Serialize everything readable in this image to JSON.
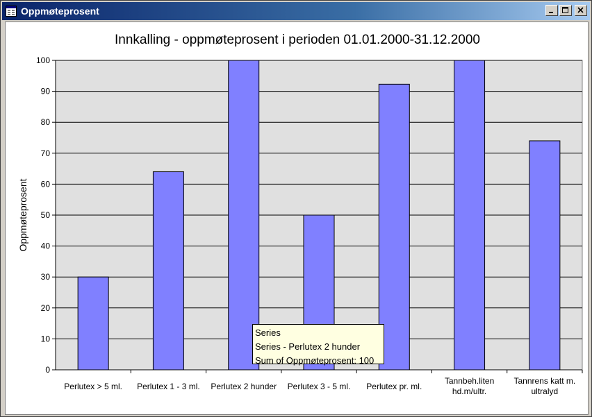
{
  "window": {
    "title": "Oppmøteprosent"
  },
  "colors": {
    "bar": "#8080ff",
    "plot_bg": "#e0e0e0",
    "tooltip_bg": "#ffffe1"
  },
  "chart_data": {
    "type": "bar",
    "title": "Innkalling - oppmøteprosent i perioden 01.01.2000-31.12.2000",
    "ylabel": "Oppmøteprosent",
    "xlabel": "",
    "ylim": [
      0,
      100
    ],
    "yticks": [
      0,
      10,
      20,
      30,
      40,
      50,
      60,
      70,
      80,
      90,
      100
    ],
    "categories": [
      [
        "Perlutex > 5 ml."
      ],
      [
        "Perlutex 1 - 3 ml."
      ],
      [
        "Perlutex 2 hunder"
      ],
      [
        "Perlutex 3 - 5 ml."
      ],
      [
        "Perlutex pr. ml."
      ],
      [
        "Tannbeh.liten",
        "hd.m/ultr."
      ],
      [
        "Tannrens katt m.",
        "ultralyd"
      ]
    ],
    "values": [
      30,
      64,
      100,
      50,
      92.3,
      100,
      74
    ],
    "grid": true,
    "legend": "none"
  },
  "tooltip": {
    "line1": "Series",
    "line2": "Series - Perlutex 2 hunder",
    "line3": "Sum of Oppmøteprosent: 100"
  }
}
